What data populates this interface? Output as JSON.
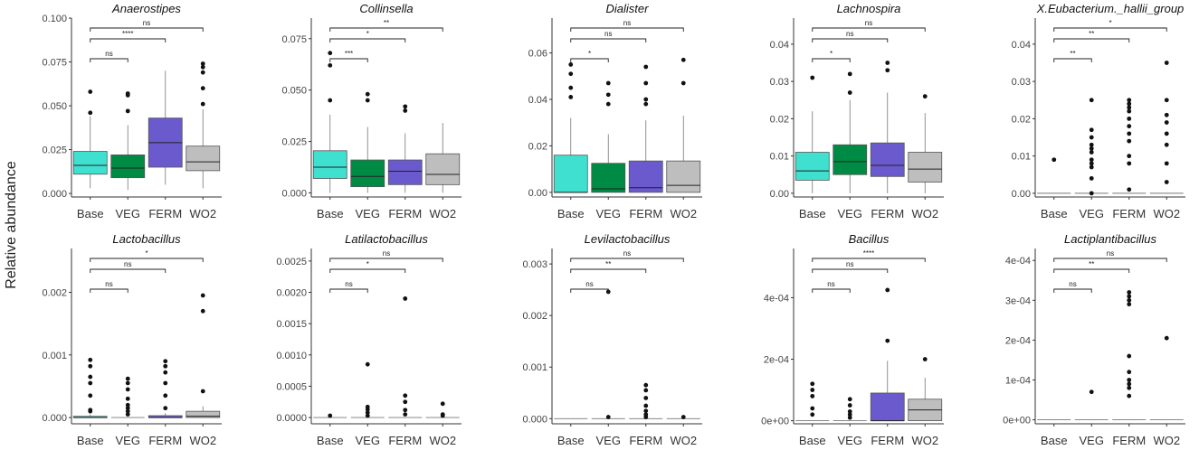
{
  "figure": {
    "y_axis_label": "Relative abundance"
  },
  "colors": {
    "Base": "#40E0D0",
    "VEG": "#008B45",
    "FERM": "#6A5ACD",
    "WO2": "#BEBEBE"
  },
  "chart_data": [
    {
      "type": "box",
      "title": "Anaerostipes",
      "categories": [
        "Base",
        "VEG",
        "FERM",
        "WO2"
      ],
      "ylim": [
        -0.002,
        0.1
      ],
      "yticks": [
        0,
        0.025,
        0.05,
        0.075,
        0.1
      ],
      "ytick_labels": [
        "0.000",
        "0.025",
        "0.050",
        "0.075",
        "0.100"
      ],
      "boxes": [
        {
          "group": "Base",
          "lw": 0.003,
          "q1": 0.011,
          "median": 0.016,
          "q3": 0.024,
          "uw": 0.044,
          "outliers": [
            0.046,
            0.058
          ]
        },
        {
          "group": "VEG",
          "lw": 0.002,
          "q1": 0.009,
          "median": 0.0145,
          "q3": 0.022,
          "uw": 0.039,
          "outliers": [
            0.047,
            0.056,
            0.057
          ]
        },
        {
          "group": "FERM",
          "lw": 0.005,
          "q1": 0.015,
          "median": 0.029,
          "q3": 0.043,
          "uw": 0.07,
          "outliers": []
        },
        {
          "group": "WO2",
          "lw": 0.003,
          "q1": 0.013,
          "median": 0.018,
          "q3": 0.027,
          "uw": 0.048,
          "outliers": [
            0.051,
            0.06,
            0.069,
            0.072,
            0.074
          ]
        }
      ],
      "significance": [
        {
          "from": "Base",
          "to": "VEG",
          "label": "ns"
        },
        {
          "from": "Base",
          "to": "FERM",
          "label": "****"
        },
        {
          "from": "Base",
          "to": "WO2",
          "label": "ns"
        }
      ]
    },
    {
      "type": "box",
      "title": "Collinsella",
      "categories": [
        "Base",
        "VEG",
        "FERM",
        "WO2"
      ],
      "ylim": [
        -0.002,
        0.085
      ],
      "yticks": [
        0,
        0.025,
        0.05,
        0.075
      ],
      "ytick_labels": [
        "0.000",
        "0.025",
        "0.050",
        "0.075"
      ],
      "boxes": [
        {
          "group": "Base",
          "lw": 0.0,
          "q1": 0.007,
          "median": 0.0125,
          "q3": 0.0205,
          "uw": 0.038,
          "outliers": [
            0.045,
            0.062,
            0.068
          ]
        },
        {
          "group": "VEG",
          "lw": 0.0,
          "q1": 0.003,
          "median": 0.008,
          "q3": 0.016,
          "uw": 0.032,
          "outliers": [
            0.045,
            0.048
          ]
        },
        {
          "group": "FERM",
          "lw": 0.0,
          "q1": 0.004,
          "median": 0.0105,
          "q3": 0.016,
          "uw": 0.029,
          "outliers": [
            0.04,
            0.042
          ]
        },
        {
          "group": "WO2",
          "lw": 0.0,
          "q1": 0.004,
          "median": 0.009,
          "q3": 0.019,
          "uw": 0.034,
          "outliers": []
        }
      ],
      "significance": [
        {
          "from": "Base",
          "to": "VEG",
          "label": "***"
        },
        {
          "from": "Base",
          "to": "FERM",
          "label": "*"
        },
        {
          "from": "Base",
          "to": "WO2",
          "label": "**"
        }
      ]
    },
    {
      "type": "box",
      "title": "Dialister",
      "categories": [
        "Base",
        "VEG",
        "FERM",
        "WO2"
      ],
      "ylim": [
        -0.002,
        0.075
      ],
      "yticks": [
        0,
        0.02,
        0.04,
        0.06
      ],
      "ytick_labels": [
        "0.00",
        "0.02",
        "0.04",
        "0.06"
      ],
      "boxes": [
        {
          "group": "Base",
          "lw": 0.0,
          "q1": 0.0,
          "median": 0.0,
          "q3": 0.016,
          "uw": 0.032,
          "outliers": [
            0.041,
            0.045,
            0.051,
            0.055
          ]
        },
        {
          "group": "VEG",
          "lw": 0.0,
          "q1": 0.0,
          "median": 0.0015,
          "q3": 0.0125,
          "uw": 0.025,
          "outliers": [
            0.038,
            0.042,
            0.047
          ]
        },
        {
          "group": "FERM",
          "lw": 0.0,
          "q1": 0.0,
          "median": 0.002,
          "q3": 0.0135,
          "uw": 0.031,
          "outliers": [
            0.038,
            0.04,
            0.047,
            0.054
          ]
        },
        {
          "group": "WO2",
          "lw": 0.0,
          "q1": 0.0,
          "median": 0.003,
          "q3": 0.0135,
          "uw": 0.033,
          "outliers": [
            0.047,
            0.057
          ]
        }
      ],
      "significance": [
        {
          "from": "Base",
          "to": "VEG",
          "label": "*"
        },
        {
          "from": "Base",
          "to": "FERM",
          "label": "ns"
        },
        {
          "from": "Base",
          "to": "WO2",
          "label": "ns"
        }
      ]
    },
    {
      "type": "box",
      "title": "Lachnospira",
      "categories": [
        "Base",
        "VEG",
        "FERM",
        "WO2"
      ],
      "ylim": [
        -0.001,
        0.047
      ],
      "yticks": [
        0,
        0.01,
        0.02,
        0.03,
        0.04
      ],
      "ytick_labels": [
        "0.00",
        "0.01",
        "0.02",
        "0.03",
        "0.04"
      ],
      "boxes": [
        {
          "group": "Base",
          "lw": 0.0,
          "q1": 0.0035,
          "median": 0.006,
          "q3": 0.011,
          "uw": 0.022,
          "outliers": [
            0.031
          ]
        },
        {
          "group": "VEG",
          "lw": 0.0,
          "q1": 0.005,
          "median": 0.0085,
          "q3": 0.013,
          "uw": 0.025,
          "outliers": [
            0.027,
            0.032
          ]
        },
        {
          "group": "FERM",
          "lw": 0.0,
          "q1": 0.0045,
          "median": 0.0075,
          "q3": 0.0135,
          "uw": 0.027,
          "outliers": [
            0.033,
            0.035
          ]
        },
        {
          "group": "WO2",
          "lw": 0.0,
          "q1": 0.003,
          "median": 0.0065,
          "q3": 0.011,
          "uw": 0.0215,
          "outliers": [
            0.026
          ]
        }
      ],
      "significance": [
        {
          "from": "Base",
          "to": "VEG",
          "label": "*"
        },
        {
          "from": "Base",
          "to": "FERM",
          "label": "ns"
        },
        {
          "from": "Base",
          "to": "WO2",
          "label": "ns"
        }
      ]
    },
    {
      "type": "box",
      "title": "X.Eubacterium._hallii_group",
      "categories": [
        "Base",
        "VEG",
        "FERM",
        "WO2"
      ],
      "ylim": [
        -0.001,
        0.047
      ],
      "yticks": [
        0,
        0.01,
        0.02,
        0.03,
        0.04
      ],
      "ytick_labels": [
        "0.00",
        "0.01",
        "0.02",
        "0.03",
        "0.04"
      ],
      "boxes": [
        {
          "group": "Base",
          "lw": 0.0,
          "q1": 0.0,
          "median": 0.0,
          "q3": 0.0,
          "uw": 0.0,
          "outliers": [
            0.009
          ]
        },
        {
          "group": "VEG",
          "lw": 0.0,
          "q1": 0.0,
          "median": 0.0,
          "q3": 0.0,
          "uw": 0.0,
          "outliers": [
            0.0,
            0.004,
            0.007,
            0.008,
            0.009,
            0.011,
            0.012,
            0.013,
            0.015,
            0.017,
            0.025
          ]
        },
        {
          "group": "FERM",
          "lw": 0.0,
          "q1": 0.0,
          "median": 0.0,
          "q3": 0.0,
          "uw": 0.0,
          "outliers": [
            0.001,
            0.008,
            0.01,
            0.014,
            0.016,
            0.018,
            0.02,
            0.022,
            0.023,
            0.024,
            0.025
          ]
        },
        {
          "group": "WO2",
          "lw": 0.0,
          "q1": 0.0,
          "median": 0.0,
          "q3": 0.0,
          "uw": 0.0,
          "outliers": [
            0.003,
            0.008,
            0.013,
            0.016,
            0.019,
            0.021,
            0.025,
            0.035
          ]
        }
      ],
      "significance": [
        {
          "from": "Base",
          "to": "VEG",
          "label": "**"
        },
        {
          "from": "Base",
          "to": "FERM",
          "label": "**"
        },
        {
          "from": "Base",
          "to": "WO2",
          "label": "*"
        }
      ]
    },
    {
      "type": "box",
      "title": "Lactobacillus",
      "categories": [
        "Base",
        "VEG",
        "FERM",
        "WO2"
      ],
      "ylim": [
        -0.0001,
        0.0027
      ],
      "yticks": [
        0,
        0.001,
        0.002
      ],
      "ytick_labels": [
        "0.000",
        "0.001",
        "0.002"
      ],
      "boxes": [
        {
          "group": "Base",
          "lw": 0.0,
          "q1": 0.0,
          "median": 0.0,
          "q3": 2e-05,
          "uw": 5e-05,
          "outliers": [
            0.0001,
            0.00012,
            0.00035,
            0.00055,
            0.00065,
            0.00082,
            0.00092
          ]
        },
        {
          "group": "VEG",
          "lw": 0.0,
          "q1": 0.0,
          "median": 0.0,
          "q3": 0.0,
          "uw": 0.0,
          "outliers": [
            5e-05,
            0.0001,
            0.00015,
            0.0002,
            0.0003,
            0.00045,
            0.00055,
            0.00062
          ]
        },
        {
          "group": "FERM",
          "lw": 0.0,
          "q1": 0.0,
          "median": 0.0,
          "q3": 3e-05,
          "uw": 7e-05,
          "outliers": [
            0.00015,
            0.00035,
            0.00055,
            0.00072,
            0.00082,
            0.0009
          ]
        },
        {
          "group": "WO2",
          "lw": 0.0,
          "q1": 0.0,
          "median": 2e-05,
          "q3": 0.0001,
          "uw": 0.00018,
          "outliers": [
            0.00042,
            0.0017,
            0.00195
          ]
        }
      ],
      "significance": [
        {
          "from": "Base",
          "to": "VEG",
          "label": "ns"
        },
        {
          "from": "Base",
          "to": "FERM",
          "label": "ns"
        },
        {
          "from": "Base",
          "to": "WO2",
          "label": "*"
        }
      ]
    },
    {
      "type": "box",
      "title": "Latilactobacillus",
      "categories": [
        "Base",
        "VEG",
        "FERM",
        "WO2"
      ],
      "ylim": [
        -0.0001,
        0.0027
      ],
      "yticks": [
        0,
        0.0005,
        0.001,
        0.0015,
        0.002,
        0.0025
      ],
      "ytick_labels": [
        "0.0000",
        "0.0005",
        "0.0010",
        "0.0015",
        "0.0020",
        "0.0025"
      ],
      "boxes": [
        {
          "group": "Base",
          "lw": 0.0,
          "q1": 0.0,
          "median": 0.0,
          "q3": 0.0,
          "uw": 0.0,
          "outliers": [
            3e-05
          ]
        },
        {
          "group": "VEG",
          "lw": 0.0,
          "q1": 0.0,
          "median": 0.0,
          "q3": 0.0,
          "uw": 0.0,
          "outliers": [
            3e-05,
            8e-05,
            0.00013,
            0.00017,
            0.00085
          ]
        },
        {
          "group": "FERM",
          "lw": 0.0,
          "q1": 0.0,
          "median": 0.0,
          "q3": 0.0,
          "uw": 0.0,
          "outliers": [
            5e-05,
            0.00012,
            0.00025,
            0.00035,
            0.0019
          ]
        },
        {
          "group": "WO2",
          "lw": 0.0,
          "q1": 0.0,
          "median": 0.0,
          "q3": 0.0,
          "uw": 0.0,
          "outliers": [
            3e-05,
            5e-05,
            0.00022
          ]
        }
      ],
      "significance": [
        {
          "from": "Base",
          "to": "VEG",
          "label": "ns"
        },
        {
          "from": "Base",
          "to": "FERM",
          "label": "*"
        },
        {
          "from": "Base",
          "to": "WO2",
          "label": "ns"
        }
      ]
    },
    {
      "type": "box",
      "title": "Levilactobacillus",
      "categories": [
        "Base",
        "VEG",
        "FERM",
        "WO2"
      ],
      "ylim": [
        -0.0001,
        0.0033
      ],
      "yticks": [
        0,
        0.001,
        0.002,
        0.003
      ],
      "ytick_labels": [
        "0.000",
        "0.001",
        "0.002",
        "0.003"
      ],
      "boxes": [
        {
          "group": "Base",
          "lw": 0.0,
          "q1": 0.0,
          "median": 0.0,
          "q3": 0.0,
          "uw": 0.0,
          "outliers": []
        },
        {
          "group": "VEG",
          "lw": 0.0,
          "q1": 0.0,
          "median": 0.0,
          "q3": 0.0,
          "uw": 0.0,
          "outliers": [
            3e-05,
            0.00246
          ]
        },
        {
          "group": "FERM",
          "lw": 0.0,
          "q1": 0.0,
          "median": 0.0,
          "q3": 0.0,
          "uw": 0.0,
          "outliers": [
            3e-05,
            8e-05,
            0.00015,
            0.00025,
            0.0004,
            0.00055,
            0.00065
          ]
        },
        {
          "group": "WO2",
          "lw": 0.0,
          "q1": 0.0,
          "median": 0.0,
          "q3": 0.0,
          "uw": 0.0,
          "outliers": [
            3e-05
          ]
        }
      ],
      "significance": [
        {
          "from": "Base",
          "to": "VEG",
          "label": "ns"
        },
        {
          "from": "Base",
          "to": "FERM",
          "label": "**"
        },
        {
          "from": "Base",
          "to": "WO2",
          "label": "ns"
        }
      ]
    },
    {
      "type": "box",
      "title": "Bacillus",
      "categories": [
        "Base",
        "VEG",
        "FERM",
        "WO2"
      ],
      "ylim": [
        -1e-05,
        0.00056
      ],
      "yticks": [
        0,
        0.0002,
        0.0004
      ],
      "ytick_labels": [
        "0e+00",
        "2e-04",
        "4e-04"
      ],
      "boxes": [
        {
          "group": "Base",
          "lw": 0.0,
          "q1": 0.0,
          "median": 0.0,
          "q3": 0.0,
          "uw": 0.0,
          "outliers": [
            2e-05,
            4e-05,
            8e-05,
            0.0001,
            0.00012
          ]
        },
        {
          "group": "VEG",
          "lw": 0.0,
          "q1": 0.0,
          "median": 0.0,
          "q3": 0.0,
          "uw": 0.0,
          "outliers": [
            1e-05,
            2e-05,
            3e-05,
            5e-05,
            7e-05
          ]
        },
        {
          "group": "FERM",
          "lw": 0.0,
          "q1": 0.0,
          "median": 0.0,
          "q3": 9e-05,
          "uw": 0.000195,
          "outliers": [
            0.00026,
            0.000425
          ]
        },
        {
          "group": "WO2",
          "lw": 0.0,
          "q1": 0.0,
          "median": 3.5e-05,
          "q3": 7e-05,
          "uw": 0.00014,
          "outliers": [
            0.0002
          ]
        }
      ],
      "significance": [
        {
          "from": "Base",
          "to": "VEG",
          "label": "ns"
        },
        {
          "from": "Base",
          "to": "FERM",
          "label": "ns"
        },
        {
          "from": "Base",
          "to": "WO2",
          "label": "****"
        }
      ]
    },
    {
      "type": "box",
      "title": "Lactiplantibacillus",
      "categories": [
        "Base",
        "VEG",
        "FERM",
        "WO2"
      ],
      "ylim": [
        -1e-05,
        0.00043
      ],
      "yticks": [
        0,
        0.0001,
        0.0002,
        0.0003,
        0.0004
      ],
      "ytick_labels": [
        "0e+00",
        "1e-04",
        "2e-04",
        "3e-04",
        "4e-04"
      ],
      "boxes": [
        {
          "group": "Base",
          "lw": 0.0,
          "q1": 0.0,
          "median": 0.0,
          "q3": 0.0,
          "uw": 0.0,
          "outliers": []
        },
        {
          "group": "VEG",
          "lw": 0.0,
          "q1": 0.0,
          "median": 0.0,
          "q3": 0.0,
          "uw": 0.0,
          "outliers": [
            7e-05
          ]
        },
        {
          "group": "FERM",
          "lw": 0.0,
          "q1": 0.0,
          "median": 0.0,
          "q3": 0.0,
          "uw": 0.0,
          "outliers": [
            6e-05,
            8e-05,
            9e-05,
            0.0001,
            0.00012,
            0.00016,
            0.00029,
            0.0003,
            0.00031,
            0.00032
          ]
        },
        {
          "group": "WO2",
          "lw": 0.0,
          "q1": 0.0,
          "median": 0.0,
          "q3": 0.0,
          "uw": 0.0,
          "outliers": [
            0.000205
          ]
        }
      ],
      "significance": [
        {
          "from": "Base",
          "to": "VEG",
          "label": "ns"
        },
        {
          "from": "Base",
          "to": "FERM",
          "label": "**"
        },
        {
          "from": "Base",
          "to": "WO2",
          "label": "ns"
        }
      ]
    }
  ]
}
